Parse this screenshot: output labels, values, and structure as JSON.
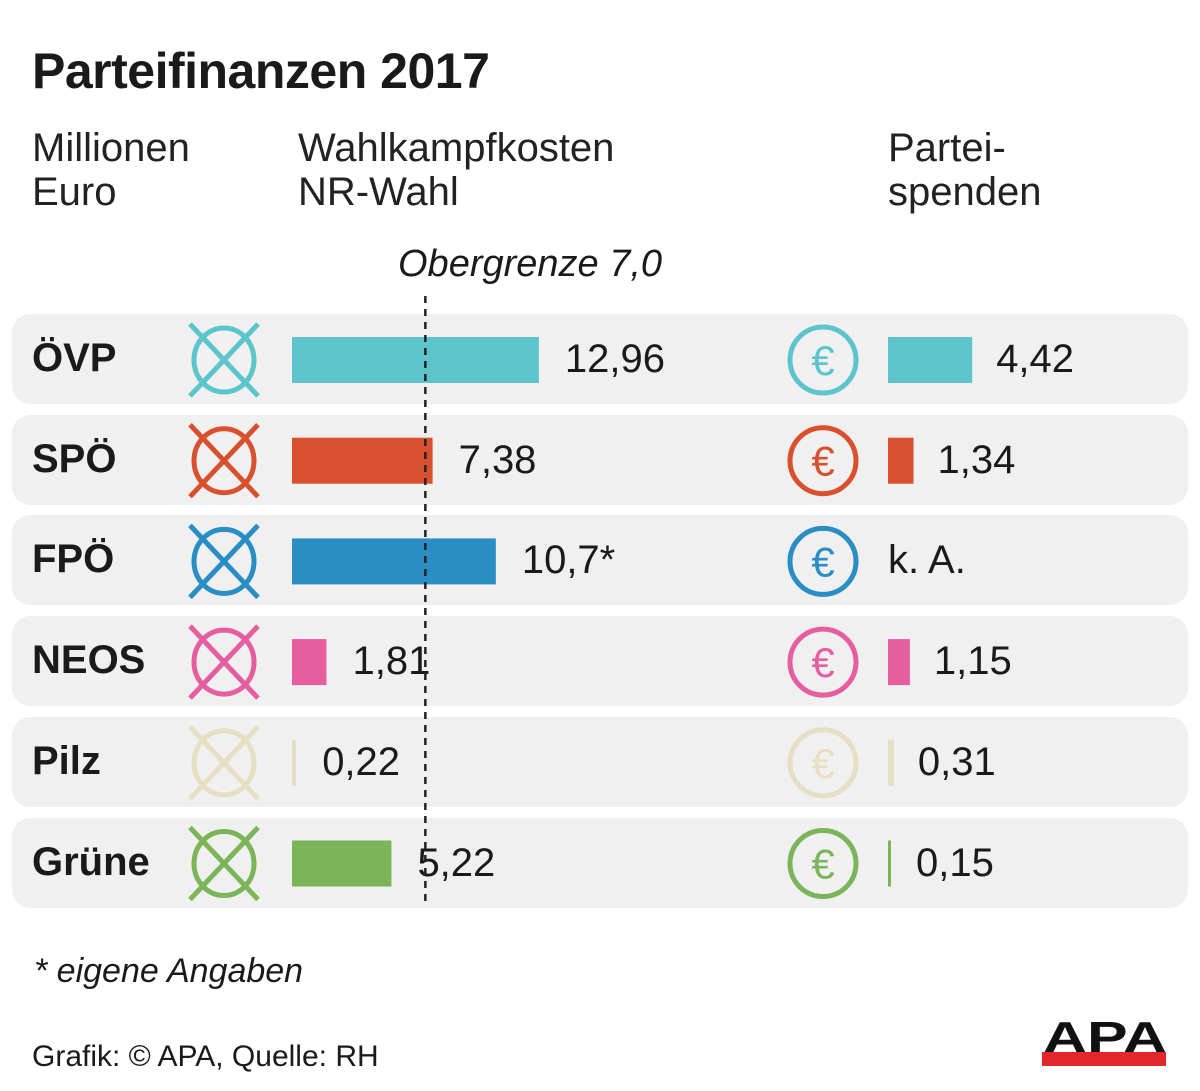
{
  "title": "Parteifinanzen 2017",
  "unit_label": "Millionen Euro",
  "unit_lines": [
    "Millionen",
    "Euro"
  ],
  "column_campaign_lines": [
    "Wahlkampfkosten",
    "NR-Wahl"
  ],
  "column_donations_lines": [
    "Partei-",
    "spenden"
  ],
  "limit_label": "Obergrenze 7,0",
  "footnote": "* eigene Angaben",
  "source": "Grafik: © APA, Quelle: RH",
  "logo_text": "APA",
  "chart_data": {
    "type": "bar",
    "orientation": "horizontal",
    "title": "Parteifinanzen 2017",
    "categories": [
      "ÖVP",
      "SPÖ",
      "FPÖ",
      "NEOS",
      "Pilz",
      "Grüne"
    ],
    "colors": [
      "#5ec4cc",
      "#d9502e",
      "#2a8ec4",
      "#e55ea0",
      "#e6dfc4",
      "#7cb45a"
    ],
    "reference_line": {
      "value": 7.0,
      "label": "Obergrenze 7,0",
      "style": "dashed",
      "series": "Wahlkampfkosten NR-Wahl"
    },
    "series": [
      {
        "name": "Wahlkampfkosten NR-Wahl",
        "icon": "ballot-cross-icon",
        "values": [
          12.96,
          7.38,
          10.7,
          1.81,
          0.22,
          5.22
        ],
        "labels": [
          "12,96",
          "7,38",
          "10,7*",
          "1,81",
          "0,22",
          "5,22"
        ]
      },
      {
        "name": "Parteispenden",
        "icon": "euro-coin-icon",
        "values": [
          4.42,
          1.34,
          null,
          1.15,
          0.31,
          0.15
        ],
        "labels": [
          "4,42",
          "1,34",
          "k. A.",
          "1,15",
          "0,31",
          "0,15"
        ]
      }
    ],
    "grid": false
  }
}
